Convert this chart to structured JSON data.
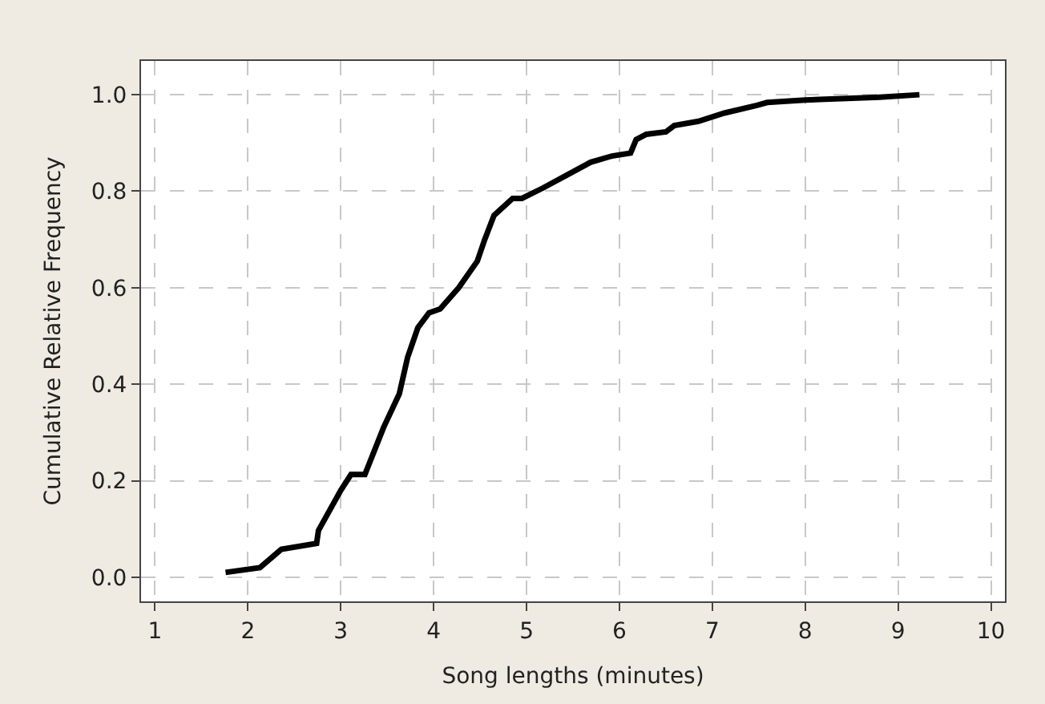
{
  "chart_data": {
    "type": "line",
    "xlabel": "Song lengths (minutes)",
    "ylabel": "Cumulative Relative Frequency",
    "x": [
      1.76,
      2.13,
      2.36,
      2.74,
      2.76,
      3.0,
      3.11,
      3.26,
      3.46,
      3.63,
      3.72,
      3.83,
      3.95,
      4.07,
      4.27,
      4.47,
      4.55,
      4.65,
      4.85,
      4.95,
      5.18,
      5.43,
      5.69,
      5.92,
      6.12,
      6.18,
      6.29,
      6.5,
      6.59,
      6.85,
      7.13,
      7.48,
      7.59,
      8.0,
      8.8,
      9.23
    ],
    "series": [
      {
        "color": "#000000",
        "values": [
          0.01,
          0.02,
          0.058,
          0.07,
          0.097,
          0.18,
          0.213,
          0.213,
          0.31,
          0.38,
          0.456,
          0.517,
          0.548,
          0.556,
          0.6,
          0.655,
          0.7,
          0.75,
          0.785,
          0.785,
          0.807,
          0.833,
          0.86,
          0.873,
          0.879,
          0.907,
          0.918,
          0.923,
          0.936,
          0.945,
          0.962,
          0.978,
          0.984,
          0.989,
          0.995,
          1.0
        ]
      }
    ],
    "xlim": [
      0.85,
      10.15
    ],
    "xticks": [
      1,
      2,
      3,
      4,
      5,
      6,
      7,
      8,
      9,
      10
    ],
    "ylim": [
      -0.05,
      1.07
    ],
    "yticks": [
      {
        "value": 0,
        "label": "0.0"
      },
      {
        "value": 0.2,
        "label": "0.2"
      },
      {
        "value": 0.4,
        "label": "0.4"
      },
      {
        "value": 0.6,
        "label": "0.6"
      },
      {
        "value": 0.8,
        "label": "0.8"
      },
      {
        "value": 1.0,
        "label": "1.0"
      }
    ],
    "grid": true,
    "legend": false,
    "marker": "none",
    "line_style": "solid"
  }
}
